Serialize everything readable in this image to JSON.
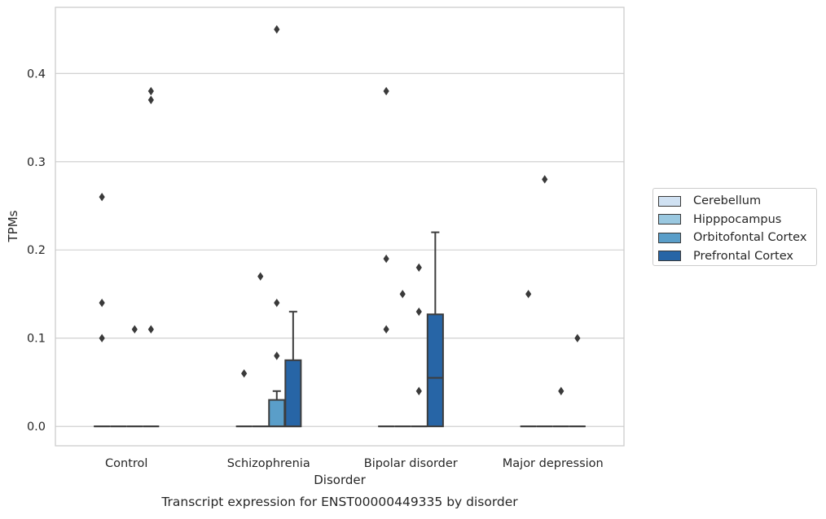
{
  "chart_data": {
    "type": "box",
    "title": "",
    "caption": "Transcript expression for ENST00000449335 by disorder",
    "xlabel": "Disorder",
    "ylabel": "TPMs",
    "ylim": [
      -0.022,
      0.475
    ],
    "yticks": [
      "0.0",
      "0.1",
      "0.2",
      "0.3",
      "0.4"
    ],
    "ytick_values": [
      0,
      0.1,
      0.2,
      0.3,
      0.4
    ],
    "grid": true,
    "legend_position": "right",
    "categories": [
      "Control",
      "Schizophrenia",
      "Bipolar disorder",
      "Major depression"
    ],
    "series": [
      {
        "name": "Cerebellum",
        "color": "#d0e1f2",
        "boxes": [
          {
            "q1": 0,
            "median": 0,
            "q3": 0,
            "whisker_low": 0,
            "whisker_high": 0,
            "outliers": [
              0.26,
              0.14,
              0.1
            ]
          },
          {
            "q1": 0,
            "median": 0,
            "q3": 0,
            "whisker_low": 0,
            "whisker_high": 0,
            "outliers": [
              0.06
            ]
          },
          {
            "q1": 0,
            "median": 0,
            "q3": 0,
            "whisker_low": 0,
            "whisker_high": 0,
            "outliers": [
              0.38,
              0.19,
              0.11
            ]
          },
          {
            "q1": 0,
            "median": 0,
            "q3": 0,
            "whisker_low": 0,
            "whisker_high": 0,
            "outliers": [
              0.15
            ]
          }
        ]
      },
      {
        "name": "Hipppocampus",
        "color": "#9ac8e0",
        "boxes": [
          {
            "q1": 0,
            "median": 0,
            "q3": 0,
            "whisker_low": 0,
            "whisker_high": 0,
            "outliers": []
          },
          {
            "q1": 0,
            "median": 0,
            "q3": 0,
            "whisker_low": 0,
            "whisker_high": 0,
            "outliers": [
              0.17
            ]
          },
          {
            "q1": 0,
            "median": 0,
            "q3": 0,
            "whisker_low": 0,
            "whisker_high": 0,
            "outliers": [
              0.15
            ]
          },
          {
            "q1": 0,
            "median": 0,
            "q3": 0,
            "whisker_low": 0,
            "whisker_high": 0,
            "outliers": [
              0.28
            ]
          }
        ]
      },
      {
        "name": "Orbitofontal Cortex",
        "color": "#5a9ec9",
        "boxes": [
          {
            "q1": 0,
            "median": 0,
            "q3": 0,
            "whisker_low": 0,
            "whisker_high": 0,
            "outliers": [
              0.11
            ]
          },
          {
            "q1": 0,
            "median": 0,
            "q3": 0.03,
            "whisker_low": 0,
            "whisker_high": 0.04,
            "outliers": [
              0.45,
              0.14,
              0.08
            ]
          },
          {
            "q1": 0,
            "median": 0,
            "q3": 0,
            "whisker_low": 0,
            "whisker_high": 0,
            "outliers": [
              0.18,
              0.13,
              0.04
            ]
          },
          {
            "q1": 0,
            "median": 0,
            "q3": 0,
            "whisker_low": 0,
            "whisker_high": 0,
            "outliers": [
              0.04
            ]
          }
        ]
      },
      {
        "name": "Prefrontal Cortex",
        "color": "#2765a6",
        "boxes": [
          {
            "q1": 0,
            "median": 0,
            "q3": 0,
            "whisker_low": 0,
            "whisker_high": 0,
            "outliers": [
              0.38,
              0.37,
              0.11
            ]
          },
          {
            "q1": 0,
            "median": 0,
            "q3": 0.075,
            "whisker_low": 0,
            "whisker_high": 0.13,
            "outliers": []
          },
          {
            "q1": 0,
            "median": 0.055,
            "q3": 0.127,
            "whisker_low": 0,
            "whisker_high": 0.22,
            "outliers": []
          },
          {
            "q1": 0,
            "median": 0,
            "q3": 0,
            "whisker_low": 0,
            "whisker_high": 0,
            "outliers": [
              0.1
            ]
          }
        ]
      }
    ]
  }
}
